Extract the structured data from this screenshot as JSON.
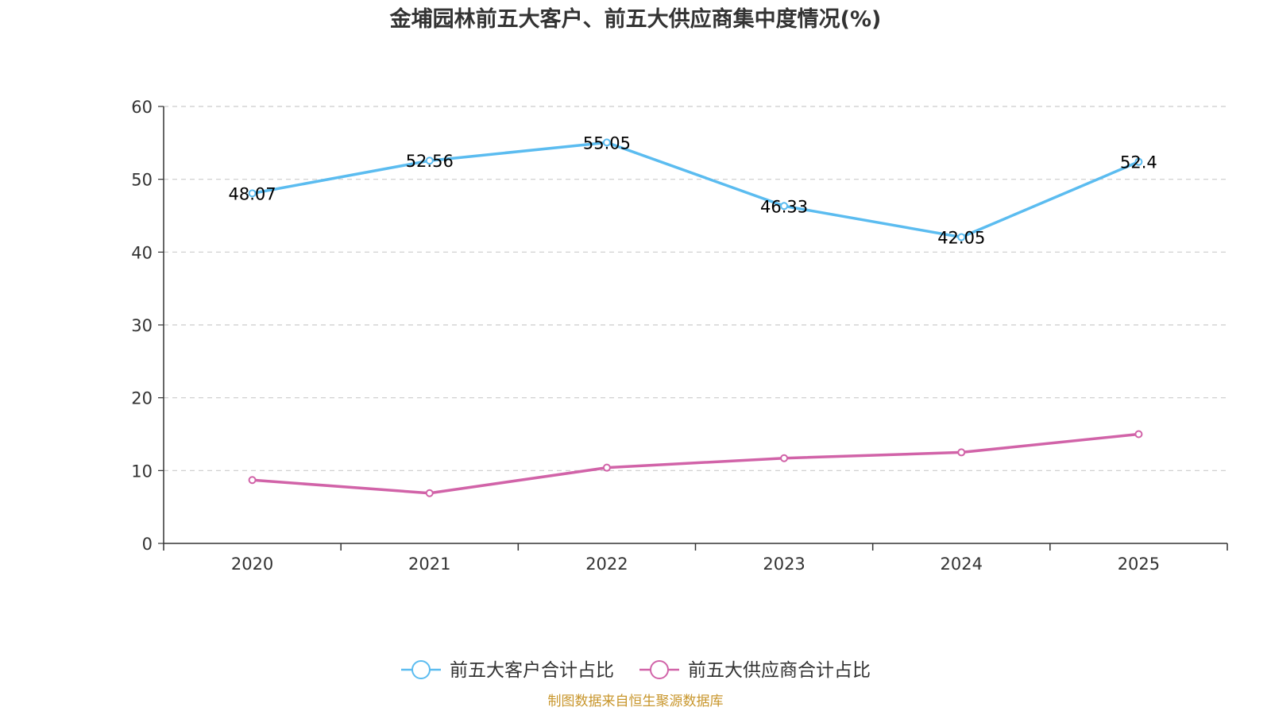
{
  "chart_data": {
    "type": "line",
    "title": "金埔园林前五大客户、前五大供应商集中度情况(%)",
    "categories": [
      "2020",
      "2021",
      "2022",
      "2023",
      "2024",
      "2025"
    ],
    "ylim": [
      0,
      60
    ],
    "yticks": [
      0,
      10,
      20,
      30,
      40,
      50,
      60
    ],
    "grid": true,
    "legend_position": "bottom-center",
    "series": [
      {
        "name": "前五大客户合计占比",
        "color": "#5bbcf0",
        "values": [
          48.07,
          52.56,
          55.05,
          46.33,
          42.05,
          52.4
        ],
        "labels": [
          "48.07",
          "52.56",
          "55.05",
          "46.33",
          "42.05",
          "52.4"
        ],
        "show_labels": true
      },
      {
        "name": "前五大供应商合计占比",
        "color": "#d163a8",
        "values": [
          8.7,
          6.9,
          10.4,
          11.7,
          12.5,
          15.0
        ],
        "show_labels": false
      }
    ]
  },
  "source_text": "制图数据来自恒生聚源数据库",
  "source_color": "#c8962c"
}
